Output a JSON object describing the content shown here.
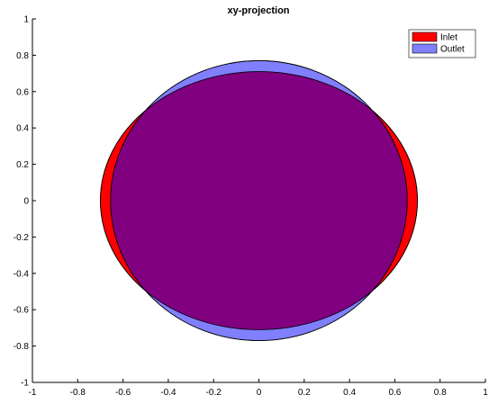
{
  "chart_data": {
    "type": "area",
    "title": "xy-projection",
    "xlabel": "",
    "ylabel": "",
    "xlim": [
      -1,
      1
    ],
    "ylim": [
      -1,
      1
    ],
    "grid": false,
    "legend_position": "top-right",
    "x_ticks": [
      "-1",
      "-0.8",
      "-0.6",
      "-0.4",
      "-0.2",
      "0",
      "0.2",
      "0.4",
      "0.6",
      "0.8",
      "1"
    ],
    "y_ticks": [
      "-1",
      "-0.8",
      "-0.6",
      "-0.4",
      "-0.2",
      "0",
      "0.2",
      "0.4",
      "0.6",
      "0.8",
      "1"
    ],
    "series": [
      {
        "name": "Inlet",
        "shape": "ellipse",
        "center": [
          0,
          0
        ],
        "semi_axis_x": 0.7,
        "semi_axis_y": 0.71,
        "color": "#ff0000"
      },
      {
        "name": "Outlet",
        "shape": "ellipse",
        "center": [
          0,
          0
        ],
        "semi_axis_x": 0.655,
        "semi_axis_y": 0.77,
        "color": "#8080ff"
      }
    ],
    "overlap_color": "#800080"
  }
}
